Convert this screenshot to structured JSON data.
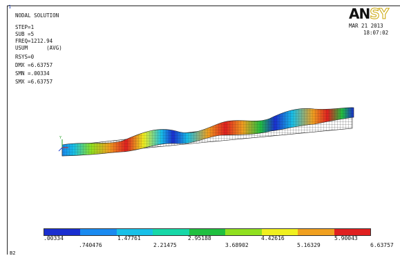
{
  "window_number": "1",
  "brand": {
    "part1": "AN",
    "part2": "SY"
  },
  "info_lines": [
    "NODAL SOLUTION",
    "STEP=1",
    "SUB =5",
    "FREQ=1212.94",
    "USUM      (AVG)",
    "RSYS=0",
    "DMX =6.63757",
    "SMN =.00334",
    "SMX =6.63757"
  ],
  "date": "MAR 21 2013",
  "time": "18:07:02",
  "legend": {
    "colors": [
      "#1a2fd0",
      "#1a8af0",
      "#18c0e8",
      "#18d8a8",
      "#20c040",
      "#90e020",
      "#f0f020",
      "#f0a020",
      "#e02020"
    ],
    "values_top": [
      ".00334",
      "1.47761",
      "2.95188",
      "4.42616",
      "5.90043"
    ],
    "values_bottom": [
      ".740476",
      "2.21475",
      "3.68902",
      "5.16329",
      "6.63757"
    ]
  },
  "corner_label": "B2",
  "mode_shape": {
    "max_displacement_value": 6.63757
  }
}
